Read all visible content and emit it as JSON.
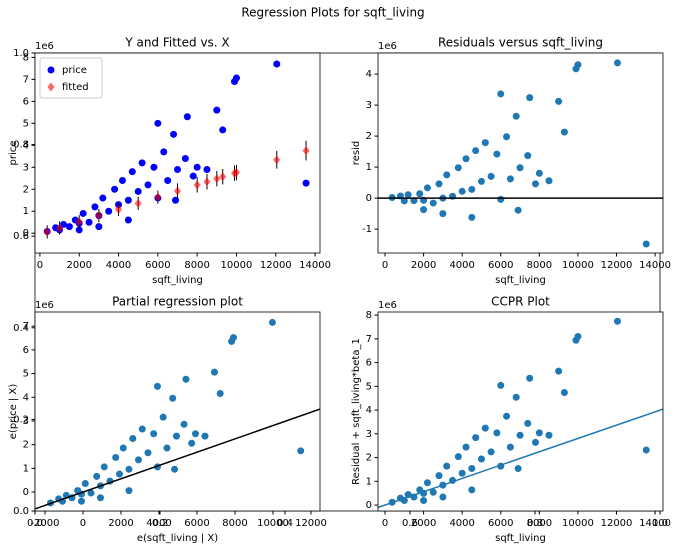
{
  "title": "Regression Plots for sqft_living",
  "chart_data": [
    {
      "type": "frame",
      "xlim": [
        0,
        1
      ],
      "ylim": [
        0,
        1
      ],
      "xticks": [
        {
          "value": 0,
          "label": "0.0"
        },
        {
          "value": 0.2,
          "label": "0.2"
        },
        {
          "value": 0.4,
          "label": "0.4"
        },
        {
          "value": 0.6,
          "label": "0.6"
        },
        {
          "value": 0.8,
          "label": "0.8"
        },
        {
          "value": 1,
          "label": "1.0"
        }
      ],
      "yticks": [
        {
          "value": 0,
          "label": "0.0"
        },
        {
          "value": 0.2,
          "label": "0.2"
        },
        {
          "value": 0.4,
          "label": "0.4"
        },
        {
          "value": 0.6,
          "label": "0.6"
        },
        {
          "value": 0.8,
          "label": "0.8"
        },
        {
          "value": 1,
          "label": "1.0"
        }
      ]
    },
    {
      "type": "scatter",
      "title": "Y and Fitted vs. X",
      "xlabel": "sqft_living",
      "ylabel": "price",
      "offset_label": "1e6",
      "xlim": [
        -250,
        14250
      ],
      "ylim": [
        -0.9,
        8.2
      ],
      "xticks": [
        0,
        2000,
        4000,
        6000,
        8000,
        10000,
        12000,
        14000
      ],
      "yticks": [
        0,
        1,
        2,
        3,
        4,
        5,
        6,
        7,
        8
      ],
      "legend": "upper left",
      "series": [
        {
          "name": "price",
          "color": "#0000ff",
          "marker": "circle",
          "x": [
            370,
            800,
            1000,
            1200,
            1500,
            1800,
            2000,
            2200,
            2500,
            2800,
            3000,
            3200,
            3500,
            3800,
            4000,
            4200,
            4500,
            4700,
            5000,
            5200,
            5500,
            5800,
            6000,
            6300,
            6500,
            6800,
            7000,
            7400,
            7800,
            8000,
            8500,
            9000,
            9300,
            9900,
            10000,
            12050,
            13540,
            7500,
            6000,
            4500,
            3000,
            2000,
            6900
          ],
          "values": [
            0.08,
            0.25,
            0.15,
            0.4,
            0.3,
            0.6,
            0.45,
            0.9,
            0.5,
            1.2,
            0.8,
            1.6,
            1.0,
            2.0,
            1.3,
            2.4,
            1.5,
            2.8,
            1.9,
            3.2,
            2.2,
            3.0,
            1.6,
            3.7,
            2.4,
            4.5,
            2.9,
            3.4,
            2.6,
            3.0,
            2.9,
            5.6,
            4.7,
            6.9,
            7.06,
            7.7,
            2.28,
            5.3,
            5.0,
            0.6,
            0.3,
            0.15,
            1.5
          ]
        },
        {
          "name": "fitted",
          "color": "#ff0000",
          "marker": "diamond",
          "x": [
            370,
            1000,
            2000,
            3000,
            4000,
            5000,
            6000,
            7000,
            8000,
            8500,
            9000,
            9300,
            9900,
            10000,
            12050,
            13540
          ],
          "values": [
            0.06,
            0.24,
            0.52,
            0.8,
            1.08,
            1.36,
            1.64,
            1.92,
            2.2,
            2.34,
            2.48,
            2.57,
            2.73,
            2.76,
            3.34,
            3.76
          ],
          "errors": [
            0.3,
            0.3,
            0.3,
            0.3,
            0.3,
            0.3,
            0.3,
            0.35,
            0.35,
            0.35,
            0.35,
            0.35,
            0.35,
            0.35,
            0.4,
            0.45
          ]
        }
      ]
    },
    {
      "type": "scatter",
      "title": "Residuals versus sqft_living",
      "xlabel": "sqft_living",
      "ylabel": "resid",
      "offset_label": "1e6",
      "xlim": [
        -363,
        14410
      ],
      "ylim": [
        -1.77,
        4.68
      ],
      "xticks": [
        0,
        2000,
        4000,
        6000,
        8000,
        10000,
        12000,
        14000
      ],
      "yticks": [
        -1,
        0,
        1,
        2,
        3,
        4
      ],
      "series": [
        {
          "color": "#1f77b4",
          "marker": "circle",
          "x": [
            370,
            800,
            1000,
            1200,
            1500,
            1800,
            2000,
            2200,
            2500,
            2800,
            3000,
            3200,
            3500,
            3800,
            4000,
            4200,
            4500,
            4700,
            5000,
            5200,
            5500,
            5800,
            6000,
            6300,
            6500,
            6800,
            7000,
            7400,
            7800,
            8000,
            8500,
            9000,
            9300,
            9900,
            10000,
            12050,
            13540,
            7500,
            6000,
            4500,
            3000,
            2000,
            6900
          ],
          "values": [
            0.02,
            0.07,
            -0.09,
            0.11,
            -0.08,
            0.14,
            -0.07,
            0.33,
            -0.16,
            0.46,
            0.0,
            0.75,
            0.06,
            0.98,
            0.22,
            1.27,
            0.28,
            1.53,
            0.54,
            1.79,
            0.7,
            1.42,
            -0.04,
            1.98,
            0.62,
            2.64,
            0.98,
            1.37,
            0.46,
            0.8,
            0.56,
            3.12,
            2.13,
            4.17,
            4.3,
            4.36,
            -1.48,
            3.24,
            3.36,
            -0.62,
            -0.5,
            -0.37,
            -0.39
          ]
        }
      ],
      "line": {
        "x": [
          -363,
          14410
        ],
        "values": [
          0,
          0
        ],
        "color": "#000000"
      }
    },
    {
      "type": "scatter",
      "title": "Partial regression plot",
      "xlabel": "e(sqft_living | X)",
      "ylabel": "e(price | X)",
      "offset_label": "1e6",
      "xlim": [
        -2526,
        12474
      ],
      "ylim": [
        -0.8,
        7.6
      ],
      "xticks": [
        -2000,
        0,
        2000,
        4000,
        6000,
        8000,
        10000,
        12000
      ],
      "yticks": [
        0,
        1,
        2,
        3,
        4,
        5,
        6,
        7
      ],
      "series": [
        {
          "color": "#1f77b4",
          "marker": "circle",
          "x": [
            -1710,
            -1280,
            -1080,
            -880,
            -580,
            -280,
            -80,
            120,
            420,
            720,
            920,
            1120,
            1420,
            1720,
            1920,
            2120,
            2420,
            2620,
            2920,
            3120,
            3420,
            3720,
            3920,
            4220,
            4420,
            4720,
            4920,
            5320,
            5720,
            5920,
            6420,
            6920,
            7220,
            7820,
            7920,
            9970,
            11460,
            5420,
            3920,
            2420,
            920,
            -80,
            4820
          ],
          "values": [
            -0.46,
            -0.29,
            -0.39,
            -0.14,
            -0.24,
            0.06,
            -0.09,
            0.36,
            -0.04,
            0.66,
            0.26,
            1.06,
            0.46,
            1.46,
            0.76,
            1.86,
            0.96,
            2.26,
            1.36,
            2.66,
            1.66,
            2.46,
            1.06,
            3.16,
            1.86,
            3.96,
            2.36,
            2.86,
            2.06,
            2.46,
            2.36,
            5.06,
            4.16,
            6.36,
            6.52,
            7.16,
            1.74,
            4.76,
            4.46,
            0.06,
            -0.24,
            -0.39,
            0.96
          ]
        }
      ],
      "line": {
        "x": [
          -2526,
          12474
        ],
        "values": [
          -0.71,
          3.5
        ],
        "color": "#000000"
      }
    },
    {
      "type": "scatter",
      "title": "CCPR Plot",
      "xlabel": "sqft_living",
      "ylabel": "Residual + sqft_living*beta_1",
      "offset_label": "1e6",
      "xlim": [
        -363,
        14410
      ],
      "ylim": [
        -0.25,
        8.13
      ],
      "xticks": [
        0,
        2000,
        4000,
        6000,
        8000,
        10000,
        12000,
        14000
      ],
      "yticks": [
        0,
        1,
        2,
        3,
        4,
        5,
        6,
        7,
        8
      ],
      "series": [
        {
          "color": "#1f77b4",
          "marker": "circle",
          "x": [
            370,
            800,
            1000,
            1200,
            1500,
            1800,
            2000,
            2200,
            2500,
            2800,
            3000,
            3200,
            3500,
            3800,
            4000,
            4200,
            4500,
            4700,
            5000,
            5200,
            5500,
            5800,
            6000,
            6300,
            6500,
            6800,
            7000,
            7400,
            7800,
            8000,
            8500,
            9000,
            9300,
            9900,
            10000,
            12050,
            13540,
            7500,
            6000,
            4500,
            3000,
            2000,
            6900
          ],
          "values": [
            0.12,
            0.29,
            0.19,
            0.44,
            0.34,
            0.64,
            0.49,
            0.94,
            0.54,
            1.24,
            0.84,
            1.64,
            1.04,
            2.04,
            1.34,
            2.44,
            1.54,
            2.84,
            1.94,
            3.24,
            2.24,
            3.04,
            1.64,
            3.74,
            2.44,
            4.54,
            2.94,
            3.44,
            2.64,
            3.04,
            2.94,
            5.64,
            4.74,
            6.94,
            7.1,
            7.74,
            2.32,
            5.34,
            5.04,
            0.64,
            0.34,
            0.19,
            1.54
          ]
        }
      ],
      "line": {
        "x": [
          -363,
          14410
        ],
        "values": [
          -0.1,
          4.04
        ],
        "color": "#1f77b4"
      }
    }
  ]
}
